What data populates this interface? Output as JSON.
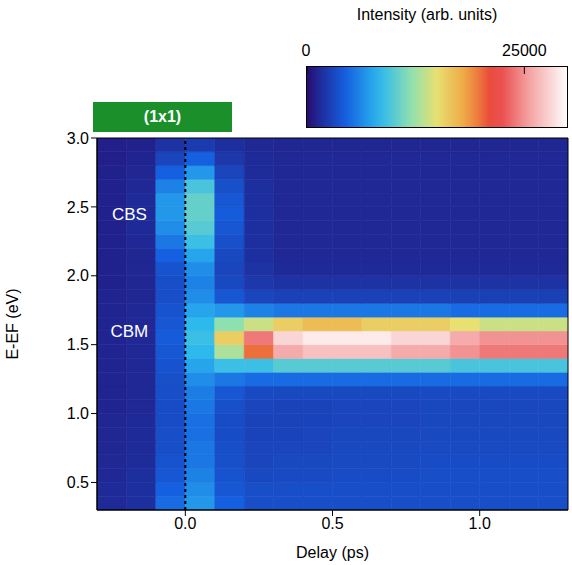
{
  "chart_data": {
    "type": "heatmap",
    "colorbar_label": "Intensity (arb. units)",
    "x_label": "Delay (ps)",
    "y_label": "E-EF (eV)",
    "panel_label": "(1x1)",
    "annotations": [
      "CBS",
      "CBM"
    ],
    "time_zero": 0,
    "xlim": [
      -0.3,
      1.3
    ],
    "ylim": [
      0.3,
      3.0
    ],
    "xticks": [
      {
        "value": 0,
        "label": "0.0"
      },
      0.5,
      {
        "value": 1,
        "label": "1.0"
      }
    ],
    "yticks": [
      0.5,
      {
        "value": 1,
        "label": "1.0"
      },
      1.5,
      {
        "value": 2,
        "label": "2.0"
      },
      2.5,
      {
        "value": 3,
        "label": "3.0"
      }
    ],
    "colorbar": {
      "range": [
        0,
        30000
      ],
      "ticks": [
        0,
        25000
      ]
    },
    "heatmap": {
      "x": [
        -0.25,
        -0.15,
        -0.05,
        0.05,
        0.15,
        0.25,
        0.35,
        0.45,
        0.55,
        0.65,
        0.75,
        0.85,
        0.95,
        1.05,
        1.15,
        1.25
      ],
      "y": [
        0.35,
        0.45,
        0.55,
        0.65,
        0.75,
        0.85,
        0.95,
        1.05,
        1.15,
        1.25,
        1.35,
        1.45,
        1.55,
        1.65,
        1.75,
        1.85,
        1.95,
        2.05,
        2.15,
        2.25,
        2.35,
        2.45,
        2.55,
        2.65,
        2.75,
        2.85,
        2.95
      ],
      "values": [
        [
          1500,
          1800,
          5000,
          7000,
          4500,
          3500,
          3500,
          3500,
          3500,
          3500,
          3500,
          3500,
          3500,
          3500,
          3500,
          3500
        ],
        [
          1500,
          1800,
          4500,
          6500,
          4000,
          3500,
          3500,
          3500,
          3500,
          3500,
          3500,
          3500,
          3500,
          3500,
          3500,
          3500
        ],
        [
          1400,
          1700,
          4000,
          6000,
          3800,
          3200,
          3300,
          3300,
          3400,
          3400,
          3400,
          3500,
          3500,
          3500,
          3500,
          3500
        ],
        [
          1400,
          1600,
          3800,
          5500,
          3600,
          3000,
          3200,
          3200,
          3300,
          3300,
          3300,
          3400,
          3400,
          3400,
          3400,
          3400
        ],
        [
          1300,
          1500,
          3500,
          5500,
          3500,
          3000,
          3000,
          3000,
          3200,
          3200,
          3200,
          3300,
          3300,
          3300,
          3300,
          3300
        ],
        [
          1300,
          1500,
          3500,
          5200,
          3400,
          2900,
          2900,
          3000,
          3100,
          3100,
          3100,
          3200,
          3200,
          3200,
          3200,
          3200
        ],
        [
          1300,
          1500,
          3400,
          5200,
          3400,
          2900,
          2900,
          2900,
          3000,
          3000,
          3000,
          3100,
          3100,
          3100,
          3100,
          3100
        ],
        [
          1200,
          1400,
          3400,
          5500,
          3600,
          3000,
          2900,
          2900,
          3000,
          3000,
          3000,
          3100,
          3100,
          3100,
          3100,
          3100
        ],
        [
          1200,
          1400,
          3500,
          5800,
          4000,
          3300,
          3200,
          3200,
          3200,
          3200,
          3200,
          3300,
          3300,
          3300,
          3300,
          3300
        ],
        [
          1200,
          1400,
          3600,
          6500,
          5500,
          5000,
          5000,
          5000,
          5000,
          5000,
          5000,
          5000,
          5000,
          5000,
          5000,
          5000
        ],
        [
          1200,
          1400,
          3800,
          7500,
          9000,
          9000,
          10000,
          10000,
          10000,
          10000,
          10000,
          10000,
          9500,
          9500,
          9500,
          9500
        ],
        [
          1200,
          1400,
          4000,
          8500,
          13000,
          20000,
          26000,
          27000,
          27000,
          27000,
          26000,
          26000,
          25000,
          24000,
          24000,
          24000
        ],
        [
          1200,
          1400,
          4200,
          9000,
          16000,
          24000,
          28000,
          29000,
          29000,
          29000,
          28000,
          28000,
          26000,
          25000,
          25000,
          25000
        ],
        [
          1200,
          1400,
          4000,
          8500,
          12000,
          14000,
          16000,
          17000,
          17000,
          16000,
          16000,
          16000,
          15000,
          14000,
          14000,
          14000
        ],
        [
          1200,
          1400,
          3800,
          7500,
          7000,
          6000,
          5500,
          5500,
          5500,
          5500,
          5500,
          5500,
          5000,
          5000,
          5000,
          5000
        ],
        [
          1200,
          1300,
          3500,
          6500,
          4000,
          3000,
          2800,
          2800,
          2800,
          2800,
          2800,
          2800,
          2700,
          2700,
          2700,
          2700
        ],
        [
          1100,
          1300,
          3500,
          6000,
          3200,
          2300,
          2000,
          2000,
          2000,
          2000,
          2000,
          2000,
          2000,
          2000,
          2000,
          2000
        ],
        [
          1100,
          1300,
          3800,
          6500,
          3000,
          2000,
          1500,
          1500,
          1500,
          1500,
          1500,
          1500,
          1500,
          1500,
          1500,
          1500
        ],
        [
          1100,
          1300,
          4500,
          7500,
          3200,
          1800,
          1400,
          1400,
          1400,
          1400,
          1400,
          1400,
          1400,
          1400,
          1400,
          1400
        ],
        [
          1100,
          1400,
          5500,
          9000,
          3600,
          1800,
          1400,
          1400,
          1400,
          1400,
          1400,
          1400,
          1400,
          1400,
          1400,
          1400
        ],
        [
          1100,
          1500,
          6500,
          10000,
          4000,
          1800,
          1400,
          1400,
          1400,
          1400,
          1400,
          1400,
          1400,
          1400,
          1400,
          1400
        ],
        [
          1100,
          1500,
          7000,
          10500,
          4200,
          1800,
          1400,
          1400,
          1400,
          1400,
          1400,
          1400,
          1400,
          1400,
          1400,
          1400
        ],
        [
          1100,
          1500,
          7000,
          10500,
          4000,
          1800,
          1400,
          1400,
          1400,
          1400,
          1400,
          1400,
          1400,
          1400,
          1400,
          1400
        ],
        [
          1100,
          1400,
          6000,
          9500,
          3600,
          1700,
          1400,
          1400,
          1400,
          1400,
          1400,
          1400,
          1400,
          1400,
          1400,
          1400
        ],
        [
          1100,
          1300,
          4500,
          7000,
          3000,
          1600,
          1400,
          1400,
          1400,
          1400,
          1400,
          1400,
          1400,
          1400,
          1400,
          1400
        ],
        [
          1000,
          1200,
          3000,
          4500,
          2300,
          1500,
          1400,
          1400,
          1400,
          1400,
          1400,
          1400,
          1400,
          1400,
          1400,
          1400
        ],
        [
          1000,
          1100,
          2000,
          2500,
          1800,
          1400,
          1300,
          1300,
          1300,
          1300,
          1300,
          1300,
          1300,
          1300,
          1300,
          1300
        ]
      ]
    }
  }
}
